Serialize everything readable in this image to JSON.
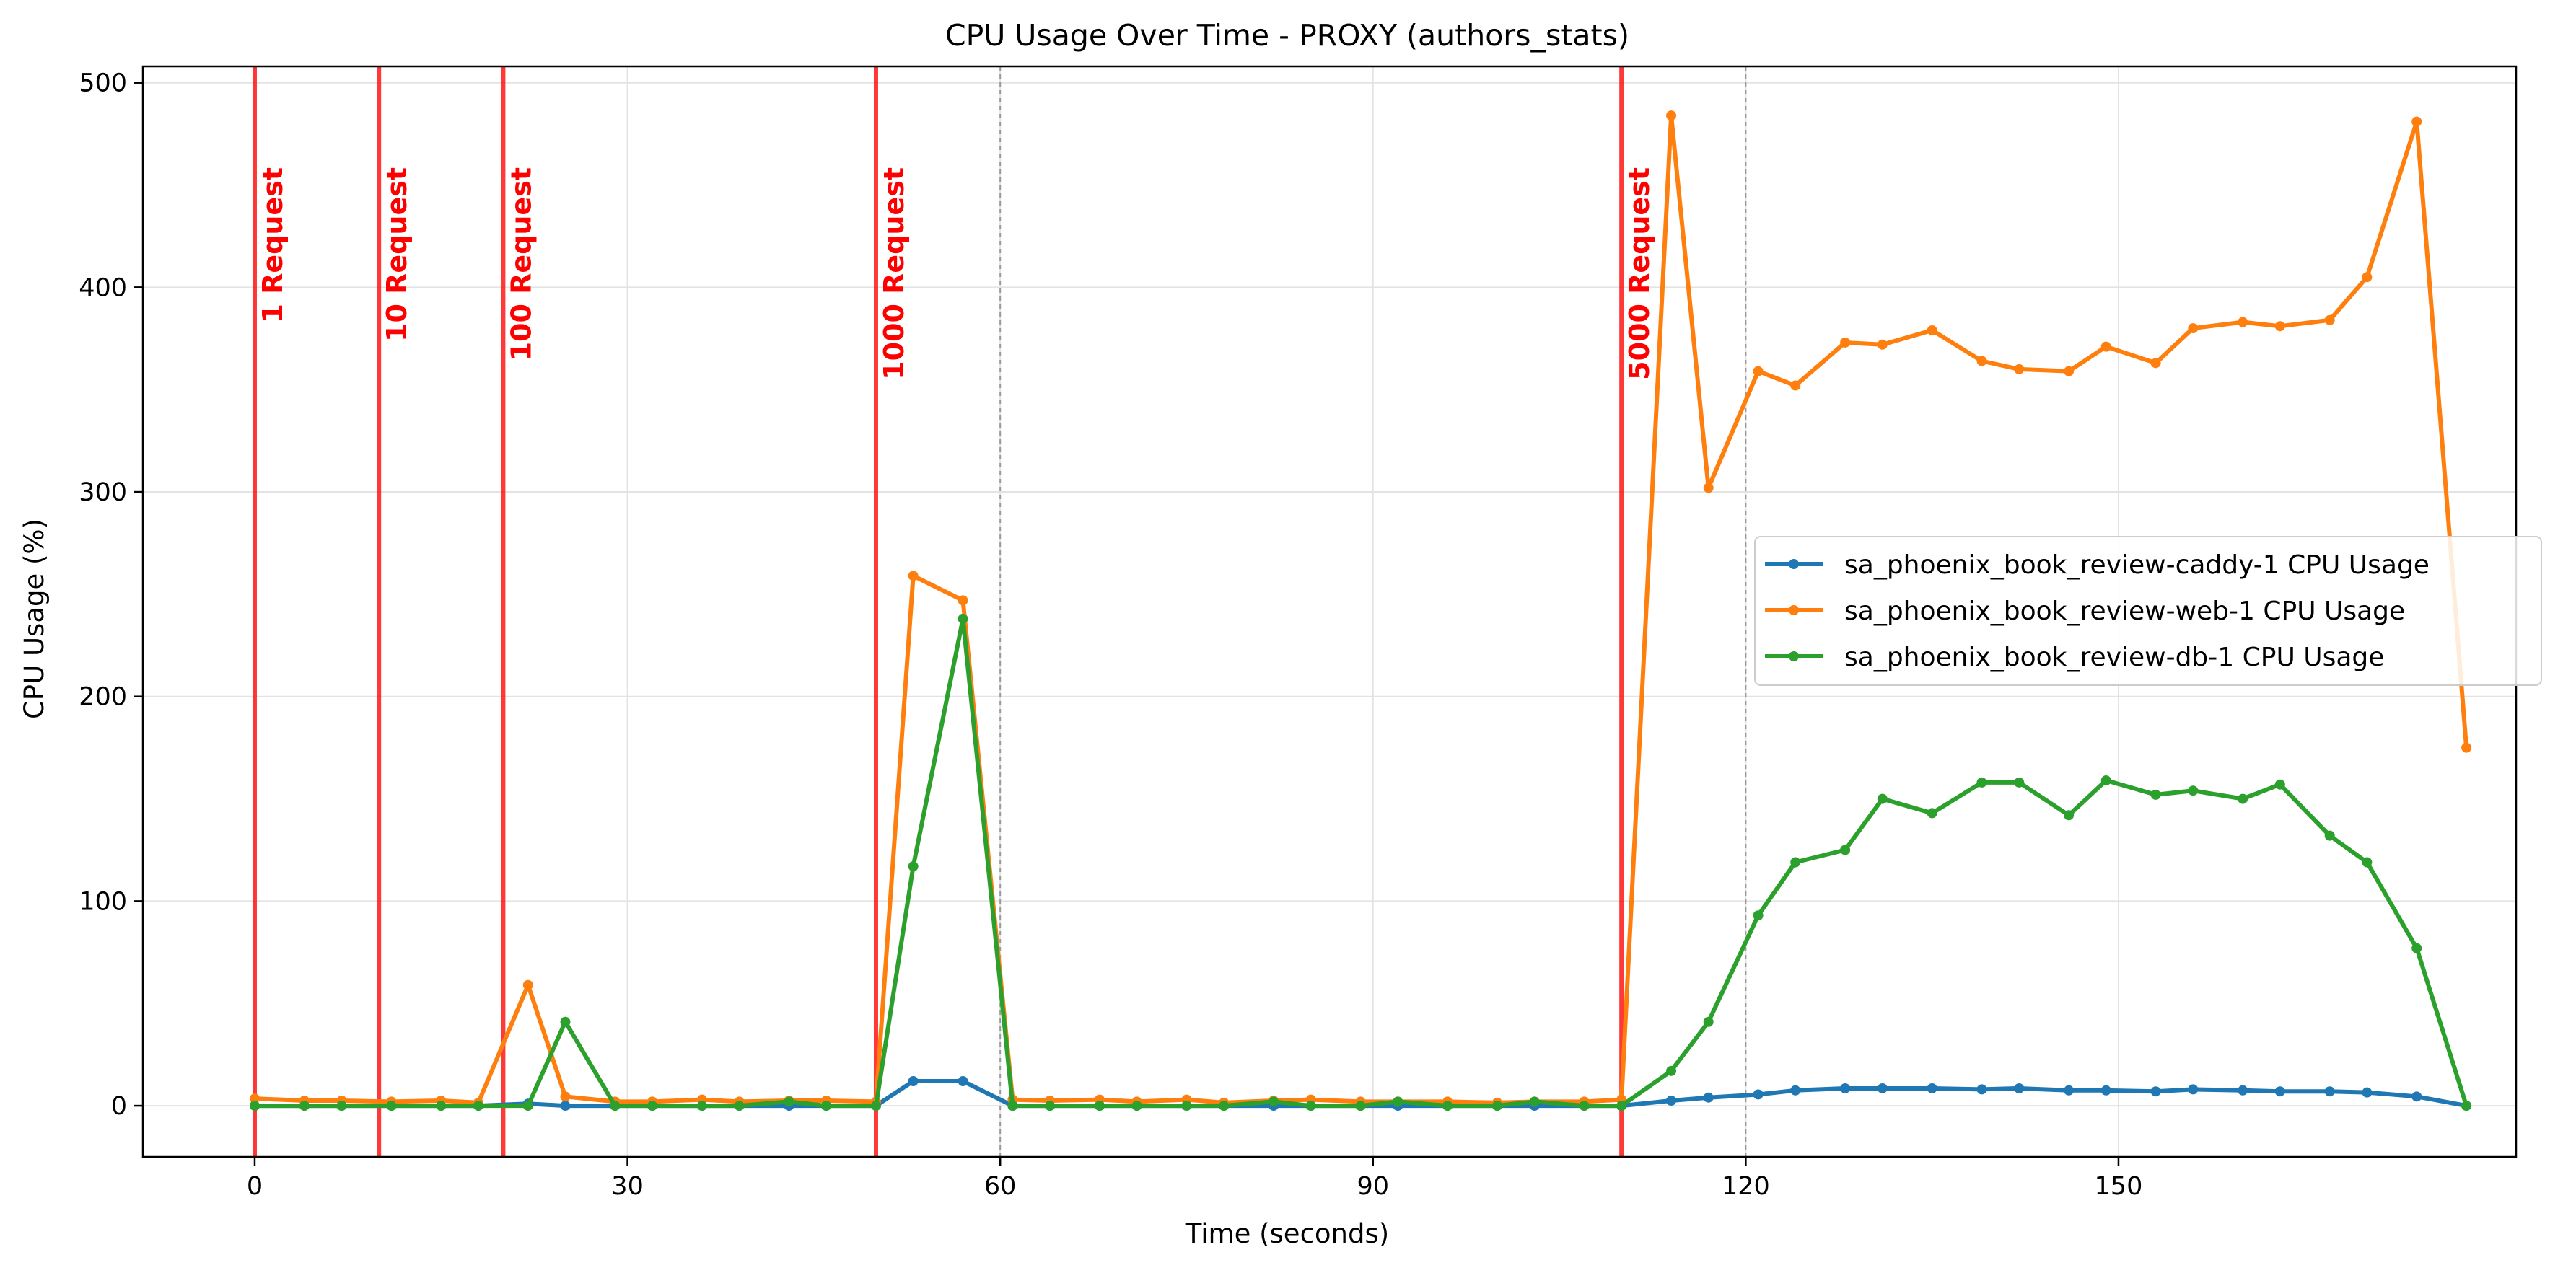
{
  "chart_data": {
    "type": "line",
    "title": "CPU Usage Over Time - PROXY (authors_stats)",
    "xlabel": "Time (seconds)",
    "ylabel": "CPU Usage (%)",
    "xlim": [
      -9,
      182
    ],
    "ylim": [
      -25,
      508
    ],
    "xticks": [
      0,
      30,
      60,
      90,
      120,
      150
    ],
    "yticks": [
      0,
      100,
      200,
      300,
      400,
      500
    ],
    "grid": true,
    "legend_position": "center-right",
    "dashed_vlines": [
      60,
      120
    ],
    "events": [
      {
        "x": 0,
        "label": "1 Request"
      },
      {
        "x": 10,
        "label": "10 Request"
      },
      {
        "x": 20,
        "label": "100 Request"
      },
      {
        "x": 50,
        "label": "1000 Request"
      },
      {
        "x": 110,
        "label": "5000 Request"
      }
    ],
    "event_color": "#ff0000",
    "x": [
      0,
      4,
      7,
      11,
      15,
      18,
      22,
      25,
      29,
      32,
      36,
      39,
      43,
      46,
      50,
      53,
      57,
      61,
      64,
      68,
      71,
      75,
      78,
      82,
      85,
      89,
      92,
      96,
      100,
      103,
      107,
      110,
      114,
      117,
      121,
      124,
      128,
      131,
      135,
      139,
      142,
      146,
      149,
      153,
      156,
      160,
      163,
      167,
      170,
      174,
      178
    ],
    "series": [
      {
        "name": "sa_phoenix_book_review-caddy-1 CPU Usage",
        "color": "#1f77b4",
        "values": [
          0,
          0,
          0,
          0,
          0,
          0,
          1,
          0,
          0,
          0,
          0,
          0,
          0,
          0,
          0,
          12,
          12,
          0,
          0,
          0,
          0,
          0,
          0,
          0,
          0,
          0,
          0,
          0,
          0,
          0,
          0,
          0,
          2.5,
          4,
          5.5,
          7.5,
          8.5,
          8.5,
          8.5,
          8,
          8.5,
          7.5,
          7.5,
          7,
          8,
          7.5,
          7,
          7,
          6.5,
          4.5,
          0
        ]
      },
      {
        "name": "sa_phoenix_book_review-web-1 CPU Usage",
        "color": "#ff7f0e",
        "values": [
          3.5,
          2.5,
          2.5,
          2,
          2.5,
          1.5,
          59,
          4.5,
          2,
          2,
          3,
          2,
          2.5,
          2.5,
          2,
          259,
          247,
          3,
          2.5,
          3,
          2,
          3,
          1.5,
          2.5,
          3,
          2,
          2,
          2,
          1.5,
          2,
          2,
          3,
          484,
          302,
          359,
          352,
          373,
          372,
          379,
          364,
          360,
          359,
          371,
          363,
          380,
          383,
          381,
          384,
          405,
          481,
          175
        ]
      },
      {
        "name": "sa_phoenix_book_review-db-1 CPU Usage",
        "color": "#2ca02c",
        "values": [
          0,
          0,
          0,
          0,
          0,
          0,
          0,
          41,
          0,
          0,
          0,
          0,
          2,
          0,
          0,
          117,
          238,
          0,
          0,
          0,
          0,
          0,
          0,
          2,
          0,
          0,
          2,
          0,
          0,
          2,
          0,
          0,
          17,
          41,
          93,
          119,
          125,
          150,
          143,
          158,
          158,
          142,
          159,
          152,
          154,
          150,
          157,
          132,
          119,
          77,
          0
        ]
      }
    ]
  }
}
